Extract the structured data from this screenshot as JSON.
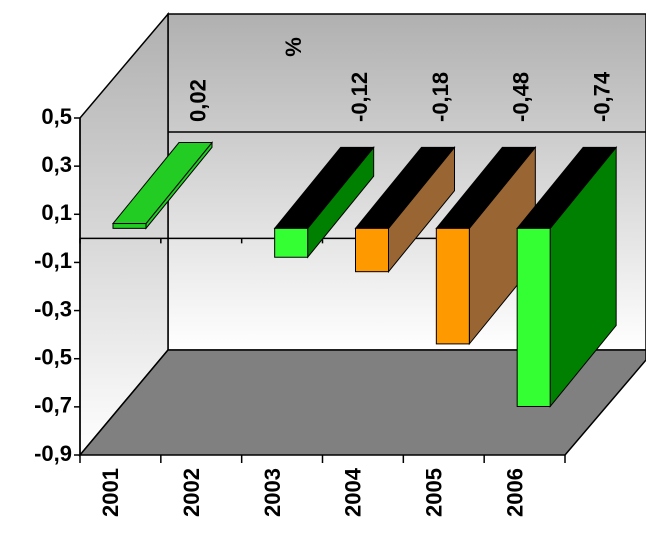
{
  "chart_data": {
    "type": "bar3d",
    "categories": [
      "2001",
      "2002",
      "2003",
      "2004",
      "2005",
      "2006"
    ],
    "values": [
      0.02,
      null,
      -0.12,
      -0.18,
      -0.48,
      -0.74
    ],
    "value_labels": [
      "0,02",
      null,
      "-0,12",
      "-0,18",
      "-0,48",
      "-0,74"
    ],
    "annotation": "%",
    "colors": [
      "#22cc22",
      null,
      "#33ff33",
      "#ff9900",
      "#ff9900",
      "#33ff33"
    ],
    "side_colors": [
      "#22cc22",
      null,
      "#008000",
      "#996633",
      "#996633",
      "#008000"
    ],
    "top_colors": [
      "#22cc22",
      null,
      "#000000",
      "#000000",
      "#000000",
      "#000000"
    ],
    "ylim": [
      -0.9,
      0.5
    ],
    "yticks": [
      {
        "value": 0.5,
        "label": "0,5"
      },
      {
        "value": 0.3,
        "label": "0,3"
      },
      {
        "value": 0.1,
        "label": "0,1"
      },
      {
        "value": -0.1,
        "label": "-0,1"
      },
      {
        "value": -0.3,
        "label": "-0,3"
      },
      {
        "value": -0.5,
        "label": "-0,5"
      },
      {
        "value": -0.7,
        "label": "-0,7"
      },
      {
        "value": -0.9,
        "label": "-0,9"
      }
    ]
  }
}
